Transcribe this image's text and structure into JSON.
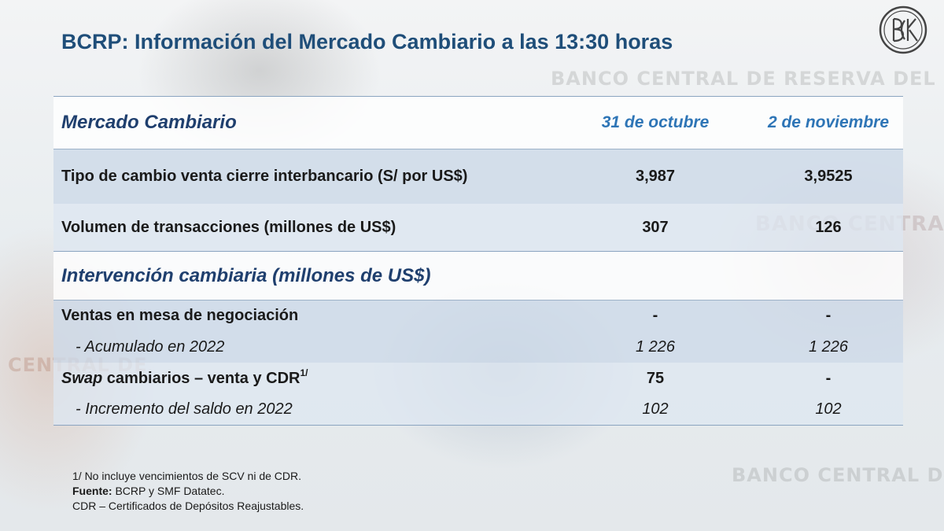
{
  "title": "BCRP: Información del Mercado Cambiario a las 13:30 horas",
  "logo": {
    "icon": "bcrp-seal-icon"
  },
  "background_text": [
    "BANCO CENTRAL DE RESERVA DEL PE",
    "BANCO CENTRAL",
    "BANCO CENTRAL DE",
    "CENTRAL DE"
  ],
  "table": {
    "header": {
      "label": "Mercado Cambiario",
      "col1": "31 de octubre",
      "col2": "2 de noviembre"
    },
    "rows": [
      {
        "label": "Tipo de cambio venta cierre interbancario (S/ por US$)",
        "v1": "3,987",
        "v2": "3,9525"
      },
      {
        "label": "Volumen de transacciones (millones de US$)",
        "v1": "307",
        "v2": "126"
      }
    ],
    "section": {
      "label": "Intervención cambiaria (millones de US$)"
    },
    "intervention": [
      {
        "label": "Ventas en mesa de negociación",
        "v1": "-",
        "v2": "-"
      },
      {
        "label": "-  Acumulado en 2022",
        "v1": "1 226",
        "v2": "1 226"
      },
      {
        "label_italic": "Swap",
        "label_rest": " cambiarios – venta y CDR",
        "label_sup": "1/",
        "v1": "75",
        "v2": "-"
      },
      {
        "label": "-  Incremento del saldo en 2022",
        "v1": "102",
        "v2": "102"
      }
    ]
  },
  "notes": {
    "note1": "1/ No incluye vencimientos de SCV ni de CDR.",
    "source_label": "Fuente:",
    "source_text": " BCRP y SMF Datatec.",
    "note3": "CDR – Certificados de Depósitos Reajustables."
  },
  "colors": {
    "title": "#1f4e79",
    "header_dates": "#2e75b6",
    "band": "#cddae8"
  }
}
